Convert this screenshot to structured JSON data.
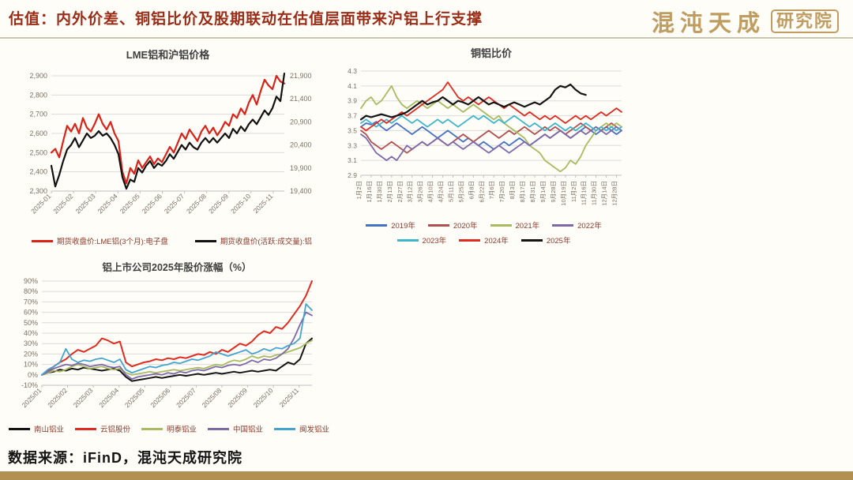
{
  "header": {
    "title": "估值：内外价差、铜铝比价及股期联动在估值层面带来沪铝上行支撑",
    "title_color": "#9a2d18",
    "logo_main": "混沌天成",
    "logo_sub": "研究院",
    "logo_color": "#bf9c60"
  },
  "footer": {
    "source": "数据来源：iFinD，混沌天成研究院",
    "bar_color": "#b29052"
  },
  "chart_data": [
    {
      "id": "lme-shfe-aluminum-price",
      "type": "line",
      "title": "LME铝和沪铝价格",
      "grid": true,
      "legend_position": "bottom",
      "ylim": [
        2300,
        2900
      ],
      "y_ticks": [
        "2,900",
        "2,800",
        "2,700",
        "2,600",
        "2,500",
        "2,400",
        "2,300"
      ],
      "right_axis": {
        "min": 19400,
        "max": 21900,
        "ticks": [
          "21,900",
          "21,400",
          "20,900",
          "20,400",
          "19,900",
          "19,400"
        ]
      },
      "x_labels": [
        "2025-01",
        "2025-02",
        "2025-03",
        "2025-04",
        "2025-05",
        "2025-06",
        "2025-07",
        "2025-08",
        "2025-09",
        "2025-10",
        "2025-11"
      ],
      "series": [
        {
          "name": "期货收盘价:LME铝(3个月):电子盘",
          "color": "#d92318",
          "axis": "left",
          "values": [
            2500,
            2520,
            2475,
            2560,
            2640,
            2610,
            2650,
            2600,
            2680,
            2630,
            2610,
            2650,
            2700,
            2650,
            2620,
            2660,
            2600,
            2560,
            2400,
            2340,
            2420,
            2390,
            2460,
            2420,
            2450,
            2480,
            2440,
            2470,
            2450,
            2490,
            2530,
            2500,
            2550,
            2600,
            2570,
            2620,
            2590,
            2560,
            2610,
            2640,
            2600,
            2630,
            2590,
            2620,
            2660,
            2640,
            2700,
            2680,
            2730,
            2700,
            2760,
            2800,
            2750,
            2820,
            2880,
            2850,
            2830,
            2900,
            2870,
            2860
          ]
        },
        {
          "name": "期货收盘价(活跃:成交量):铝",
          "color": "#111111",
          "axis": "right",
          "values": [
            19950,
            19500,
            19750,
            20050,
            20300,
            20400,
            20550,
            20350,
            20500,
            20650,
            20550,
            20600,
            20700,
            20600,
            20650,
            20550,
            20400,
            20200,
            19700,
            19450,
            19650,
            19600,
            19900,
            19800,
            19950,
            20050,
            19900,
            20000,
            19950,
            20050,
            20200,
            20100,
            20250,
            20400,
            20300,
            20450,
            20350,
            20300,
            20450,
            20550,
            20450,
            20550,
            20450,
            20550,
            20650,
            20550,
            20750,
            20650,
            20800,
            20700,
            20850,
            20950,
            20850,
            21000,
            21150,
            21050,
            21200,
            21450,
            21350,
            21950
          ]
        }
      ]
    },
    {
      "id": "copper-aluminum-ratio",
      "type": "line",
      "title": "铜铝比价",
      "grid": true,
      "legend_position": "bottom",
      "ylim": [
        2.9,
        4.3
      ],
      "y_ticks": [
        "4.3",
        "4.1",
        "3.9",
        "3.7",
        "3.5",
        "3.3",
        "3.1",
        "2.9"
      ],
      "x_labels": [
        "1月2日",
        "1月16日",
        "1月30日",
        "2月13日",
        "2月27日",
        "3月12日",
        "3月26日",
        "4月10日",
        "4月24日",
        "5月11日",
        "5月25日",
        "6月8日",
        "6月22日",
        "7月6日",
        "7月20日",
        "8月3日",
        "8月17日",
        "8月31日",
        "9月14日",
        "9月28日",
        "10月19日",
        "11月2日",
        "11月16日",
        "11月30日",
        "12月14日",
        "12月28日"
      ],
      "series": [
        {
          "name": "2019年",
          "color": "#4472c4",
          "values": [
            3.55,
            3.6,
            3.58,
            3.62,
            3.55,
            3.5,
            3.55,
            3.6,
            3.55,
            3.5,
            3.45,
            3.5,
            3.55,
            3.5,
            3.45,
            3.4,
            3.45,
            3.5,
            3.45,
            3.4,
            3.35,
            3.4,
            3.35,
            3.3,
            3.35,
            3.3,
            3.25,
            3.3,
            3.35,
            3.3,
            3.35,
            3.4,
            3.35,
            3.3,
            3.35,
            3.4,
            3.45,
            3.4,
            3.45,
            3.5,
            3.45,
            3.4,
            3.45,
            3.5,
            3.55,
            3.5,
            3.45,
            3.5,
            3.55,
            3.5,
            3.45,
            3.5
          ]
        },
        {
          "name": "2020年",
          "color": "#b05050",
          "values": [
            3.5,
            3.45,
            3.35,
            3.3,
            3.25,
            3.3,
            3.35,
            3.3,
            3.25,
            3.2,
            3.25,
            3.3,
            3.35,
            3.3,
            3.35,
            3.4,
            3.35,
            3.3,
            3.35,
            3.4,
            3.45,
            3.4,
            3.35,
            3.4,
            3.45,
            3.5,
            3.45,
            3.4,
            3.45,
            3.5,
            3.45,
            3.5,
            3.55,
            3.5,
            3.45,
            3.5,
            3.55,
            3.5,
            3.55,
            3.5,
            3.45,
            3.5,
            3.55,
            3.6,
            3.55,
            3.5,
            3.55,
            3.5,
            3.55,
            3.6,
            3.55,
            3.5
          ]
        },
        {
          "name": "2021年",
          "color": "#a8bb5e",
          "values": [
            3.8,
            3.9,
            3.95,
            3.85,
            3.9,
            4.0,
            4.1,
            3.95,
            3.85,
            3.8,
            3.85,
            3.9,
            3.85,
            3.8,
            3.85,
            3.9,
            3.85,
            3.8,
            3.85,
            3.8,
            3.75,
            3.8,
            3.85,
            3.8,
            3.75,
            3.7,
            3.65,
            3.7,
            3.6,
            3.55,
            3.5,
            3.45,
            3.4,
            3.3,
            3.25,
            3.2,
            3.1,
            3.05,
            3.0,
            2.95,
            3.0,
            3.1,
            3.05,
            3.15,
            3.3,
            3.4,
            3.5,
            3.55,
            3.6,
            3.55,
            3.6,
            3.55
          ]
        },
        {
          "name": "2022年",
          "color": "#7e68a8",
          "values": [
            3.45,
            3.4,
            3.3,
            3.2,
            3.15,
            3.1,
            3.15,
            3.1,
            3.2,
            3.3,
            3.25,
            3.3,
            3.35,
            3.3,
            3.35,
            3.4,
            3.35,
            3.3,
            3.35,
            3.3,
            3.25,
            3.3,
            3.35,
            3.3,
            3.25,
            3.2,
            3.25,
            3.3,
            3.25,
            3.2,
            3.25,
            3.3,
            3.35,
            3.3,
            3.35,
            3.4,
            3.45,
            3.4,
            3.45,
            3.5,
            3.45,
            3.4,
            3.45,
            3.5,
            3.45,
            3.5,
            3.55,
            3.5,
            3.45,
            3.5,
            3.55,
            3.5
          ]
        },
        {
          "name": "2023年",
          "color": "#3fb5cb",
          "values": [
            3.6,
            3.65,
            3.6,
            3.55,
            3.6,
            3.65,
            3.6,
            3.65,
            3.7,
            3.65,
            3.6,
            3.65,
            3.6,
            3.55,
            3.6,
            3.65,
            3.6,
            3.65,
            3.6,
            3.55,
            3.6,
            3.65,
            3.7,
            3.65,
            3.7,
            3.65,
            3.6,
            3.65,
            3.6,
            3.65,
            3.7,
            3.65,
            3.6,
            3.55,
            3.6,
            3.55,
            3.5,
            3.55,
            3.6,
            3.55,
            3.5,
            3.55,
            3.5,
            3.55,
            3.6,
            3.55,
            3.5,
            3.55,
            3.5,
            3.55,
            3.5,
            3.55
          ]
        },
        {
          "name": "2024年",
          "color": "#e02b20",
          "values": [
            3.55,
            3.5,
            3.55,
            3.6,
            3.65,
            3.6,
            3.65,
            3.7,
            3.75,
            3.7,
            3.75,
            3.8,
            3.85,
            3.9,
            3.95,
            4.0,
            4.05,
            4.15,
            4.05,
            3.95,
            3.9,
            3.95,
            3.9,
            3.85,
            3.9,
            3.95,
            3.9,
            3.85,
            3.8,
            3.85,
            3.8,
            3.75,
            3.7,
            3.75,
            3.7,
            3.65,
            3.7,
            3.65,
            3.7,
            3.65,
            3.6,
            3.65,
            3.7,
            3.65,
            3.7,
            3.65,
            3.7,
            3.75,
            3.7,
            3.75,
            3.8,
            3.75
          ]
        },
        {
          "name": "2025年",
          "color": "#141414",
          "width": 2.2,
          "values": [
            3.65,
            3.7,
            3.68,
            3.7,
            3.72,
            3.7,
            3.68,
            3.7,
            3.72,
            3.75,
            3.8,
            3.85,
            3.9,
            3.85,
            3.88,
            3.9,
            3.95,
            3.9,
            3.85,
            3.9,
            3.88,
            3.85,
            3.9,
            3.95,
            3.9,
            3.85,
            3.88,
            3.85,
            3.82,
            3.85,
            3.88,
            3.85,
            3.82,
            3.85,
            3.88,
            3.85,
            3.9,
            3.95,
            4.05,
            4.1,
            4.08,
            4.12,
            4.05,
            4.0,
            3.98,
            null,
            null,
            null,
            null,
            null,
            null,
            null
          ]
        }
      ]
    },
    {
      "id": "aluminum-stocks-2025-change",
      "type": "line",
      "title": "铝上市公司2025年股价涨幅（%）",
      "grid": true,
      "legend_position": "bottom",
      "ylim": [
        -10,
        90
      ],
      "y_ticks": [
        "90%",
        "80%",
        "70%",
        "60%",
        "50%",
        "40%",
        "30%",
        "20%",
        "10%",
        "0%",
        "-10%"
      ],
      "x_labels": [
        "2025/01",
        "2025/02",
        "2025/03",
        "2025/04",
        "2025/05",
        "2025/06",
        "2025/07",
        "2025/08",
        "2025/09",
        "2025/10",
        "2025/11"
      ],
      "series": [
        {
          "name": "南山铝业",
          "color": "#141414",
          "width": 2,
          "values": [
            0,
            2,
            3,
            5,
            4,
            6,
            5,
            7,
            6,
            5,
            4,
            5,
            6,
            4,
            -2,
            -6,
            -5,
            -4,
            -3,
            -2,
            -3,
            -2,
            -1,
            0,
            -1,
            0,
            1,
            0,
            1,
            2,
            1,
            2,
            3,
            2,
            3,
            4,
            3,
            4,
            5,
            4,
            8,
            12,
            10,
            15,
            30,
            35
          ]
        },
        {
          "name": "云铝股份",
          "color": "#e02b20",
          "width": 2,
          "values": [
            0,
            4,
            8,
            12,
            15,
            20,
            24,
            22,
            25,
            28,
            35,
            33,
            30,
            32,
            12,
            8,
            10,
            12,
            13,
            15,
            14,
            16,
            15,
            17,
            16,
            18,
            20,
            19,
            22,
            20,
            24,
            22,
            26,
            30,
            28,
            32,
            38,
            42,
            40,
            46,
            44,
            50,
            58,
            66,
            76,
            90
          ]
        },
        {
          "name": "明泰铝业",
          "color": "#a8bb5e",
          "values": [
            0,
            2,
            4,
            3,
            5,
            8,
            10,
            8,
            6,
            7,
            8,
            6,
            5,
            6,
            2,
            0,
            1,
            2,
            3,
            2,
            3,
            4,
            5,
            4,
            5,
            6,
            7,
            6,
            8,
            10,
            9,
            12,
            14,
            13,
            15,
            18,
            16,
            18,
            17,
            19,
            20,
            22,
            24,
            26,
            30,
            33
          ]
        },
        {
          "name": "中国铝业",
          "color": "#7e68a8",
          "values": [
            0,
            3,
            6,
            8,
            10,
            9,
            11,
            10,
            8,
            9,
            10,
            8,
            7,
            8,
            0,
            -4,
            -2,
            -1,
            0,
            1,
            0,
            2,
            1,
            3,
            2,
            4,
            5,
            4,
            6,
            8,
            7,
            9,
            10,
            9,
            11,
            14,
            12,
            15,
            14,
            16,
            20,
            25,
            35,
            48,
            60,
            57
          ]
        },
        {
          "name": "闽发铝业",
          "color": "#44a3cf",
          "values": [
            0,
            5,
            8,
            12,
            25,
            15,
            12,
            14,
            13,
            15,
            16,
            14,
            12,
            15,
            5,
            2,
            4,
            6,
            8,
            7,
            9,
            10,
            12,
            11,
            13,
            15,
            14,
            16,
            18,
            22,
            20,
            18,
            20,
            22,
            24,
            20,
            22,
            25,
            23,
            26,
            25,
            28,
            30,
            35,
            68,
            62
          ]
        }
      ]
    }
  ]
}
